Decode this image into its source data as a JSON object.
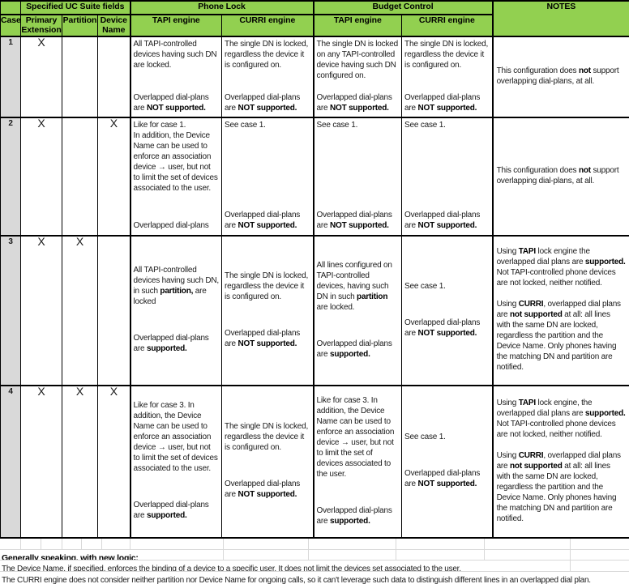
{
  "colors": {
    "header_green": "#92D050",
    "case_grey": "#D9D9D9",
    "border_black": "#000000",
    "gridline_grey": "#D8D8D8"
  },
  "header": {
    "corner": "",
    "groups": {
      "uc_fields": "Specified UC Suite fields",
      "phone_lock": "Phone Lock",
      "budget_control": "Budget Control"
    },
    "notes": "NOTES",
    "columns": [
      "Case",
      "Primary Extension",
      "Partition",
      "Device Name",
      "TAPI engine",
      "CURRI engine",
      "TAPI engine",
      "CURRI engine"
    ]
  },
  "rows": [
    {
      "case": "1",
      "marks": {
        "primary_extension": "X",
        "partition": "",
        "device_name": ""
      },
      "phone_tapi": {
        "top": "All TAPI-controlled devices having such DN are locked.",
        "bottom": "Overlapped dial-plans are <b>NOT supported.</b>"
      },
      "phone_curri": {
        "top": "The single DN is locked, regardless the device it is configured on.",
        "bottom": "Overlapped dial-plans are <b>NOT supported.</b>"
      },
      "budget_tapi": {
        "top": "The single DN is locked on any TAPI-controlled device having such DN configured on.",
        "bottom": "Overlapped dial-plans are <b>NOT supported.</b>"
      },
      "budget_curri": {
        "top": "The single DN is locked, regardless the device it is configured on.",
        "bottom": "Overlapped dial-plans are <b>NOT supported.</b>"
      },
      "notes": [
        "This configuration does <b>not</b> support overlapping dial-plans, at all."
      ]
    },
    {
      "case": "2",
      "marks": {
        "primary_extension": "X",
        "partition": "",
        "device_name": "X"
      },
      "phone_tapi": {
        "top": "Like for case 1.<br>In addition, the Device Name can be used to enforce an association device → user, but not to limit the set of devices associated to the user.",
        "bottom": "Overlapped dial-plans"
      },
      "phone_curri": {
        "top": "See case 1.",
        "bottom": "Overlapped dial-plans are <b>NOT supported.</b>"
      },
      "budget_tapi": {
        "top": "See case 1.",
        "bottom": "Overlapped dial-plans are <b>NOT supported.</b>"
      },
      "budget_curri": {
        "top": "See case 1.",
        "bottom": "Overlapped dial-plans are <b>NOT supported.</b>"
      },
      "notes": [
        "This configuration does <b>not</b> support overlapping dial-plans, at all."
      ]
    },
    {
      "case": "3",
      "marks": {
        "primary_extension": "X",
        "partition": "X",
        "device_name": ""
      },
      "phone_tapi": {
        "top": "All TAPI-controlled devices having such DN, in such <b>partition,</b> are locked",
        "bottom": "Overlapped dial-plans are <b>supported.</b>"
      },
      "phone_curri": {
        "top": "The single DN is locked, regardless the device it is configured on.",
        "bottom": "Overlapped dial-plans are <b>NOT supported.</b>"
      },
      "budget_tapi": {
        "top": "All lines configured on TAPI-controlled devices, having such DN in such <b>partition</b> are locked.",
        "bottom": "Overlapped dial-plans are <b>supported.</b>"
      },
      "budget_curri": {
        "top": "See case 1.",
        "bottom": "Overlapped dial-plans are <b>NOT supported.</b>"
      },
      "notes": [
        "Using <b>TAPI</b> lock engine the overlapped dial plans are <b>supported.</b> Not TAPI-controlled phone devices are not locked, neither notified.",
        "Using <b>CURRI</b>, overlapped dial plans are <b>not supported</b> at all: all lines with the same DN are locked, regardless the partition and the Device Name. Only phones having the matching DN and partition are notified."
      ]
    },
    {
      "case": "4",
      "marks": {
        "primary_extension": "X",
        "partition": "X",
        "device_name": "X"
      },
      "phone_tapi": {
        "top": "Like for case 3. In addition, the Device Name can be used to enforce an association device → user, but not to limit the set of devices associated to the user.",
        "bottom": "Overlapped dial-plans are <b>supported.</b>"
      },
      "phone_curri": {
        "top": "The single DN is locked, regardless the device it is configured on.",
        "bottom": "Overlapped dial-plans are <b>NOT supported.</b>"
      },
      "budget_tapi": {
        "top": "Like for case 3. In addition, the Device Name can be used to enforce an association device → user, but not to limit the set of devices associated to the user.",
        "bottom": "Overlapped dial-plans are <b>supported.</b>"
      },
      "budget_curri": {
        "top": "See case 1.",
        "bottom": "Overlapped dial-plans are <b>NOT supported.</b>"
      },
      "notes": [
        "Using <b>TAPI</b> lock engine, the overlapped dial plans are <b>supported.</b> Not TAPI-controlled phone devices are not locked, neither notified.",
        "Using <b>CURRI</b>, overlapped dial plans are <b>not supported</b> at all: all lines with the same DN are locked, regardless the partition and the Device Name. Only phones having the matching DN and partition are notified."
      ]
    }
  ],
  "footer": {
    "heading": "Generally speaking, with new logic:",
    "lines": [
      "The Device Name, if specified, enforces the binding of a device to a specific user. It does not limit the devices set associated to the user.",
      "The CURRI engine does not consider neither partition nor Device Name for ongoing calls, so it can't leverage such data to distinguish different lines in an overlapped dial plan."
    ]
  }
}
